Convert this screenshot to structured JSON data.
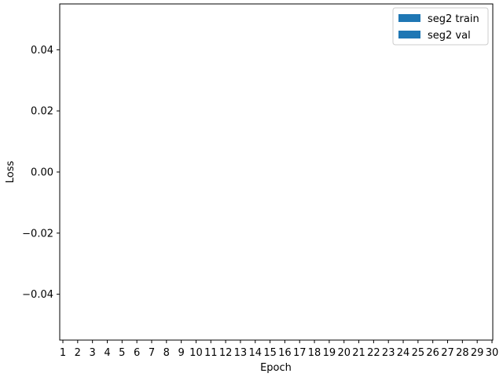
{
  "chart_data": {
    "type": "bar",
    "xlabel": "Epoch",
    "ylabel": "Loss",
    "categories": [
      "1",
      "2",
      "3",
      "4",
      "5",
      "6",
      "7",
      "8",
      "9",
      "10",
      "11",
      "12",
      "13",
      "14",
      "15",
      "16",
      "17",
      "18",
      "19",
      "20",
      "21",
      "22",
      "23",
      "24",
      "25",
      "26",
      "27",
      "28",
      "29",
      "30"
    ],
    "series": [
      {
        "name": "seg2 train",
        "values": [
          0,
          0,
          0,
          0,
          0,
          0,
          0,
          0,
          0,
          0,
          0,
          0,
          0,
          0,
          0,
          0,
          0,
          0,
          0,
          0,
          0,
          0,
          0,
          0,
          0,
          0,
          0,
          0,
          0,
          0
        ],
        "color": "#1f77b4"
      },
      {
        "name": "seg2 val",
        "values": [
          0,
          0,
          0,
          0,
          0,
          0,
          0,
          0,
          0,
          0,
          0,
          0,
          0,
          0,
          0,
          0,
          0,
          0,
          0,
          0,
          0,
          0,
          0,
          0,
          0,
          0,
          0,
          0,
          0,
          0
        ],
        "color": "#1f77b4"
      }
    ],
    "yticks": [
      "0.04",
      "0.02",
      "0.00",
      "−0.02",
      "−0.04"
    ],
    "ytick_values": [
      0.04,
      0.02,
      0.0,
      -0.02,
      -0.04
    ],
    "ylim": [
      -0.055,
      0.055
    ],
    "legend_position": "top-right",
    "grid": false
  }
}
